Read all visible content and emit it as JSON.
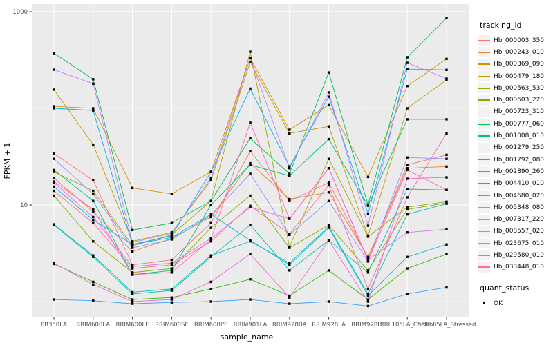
{
  "axes": {
    "x_title": "sample_name",
    "y_title": "FPKM + 1"
  },
  "legend": {
    "tracking_title": "tracking_id",
    "quant_title": "quant_status",
    "quant_label": "OK"
  },
  "chart_data": {
    "type": "line",
    "title": "",
    "xlabel": "sample_name",
    "ylabel": "FPKM + 1",
    "y_scale": "log10",
    "y_axis_breaks": [
      10,
      1000
    ],
    "y_tick_labels": [
      "10",
      "1000"
    ],
    "y_minor_gridlines": [
      1,
      100
    ],
    "ylim": [
      0.7,
      1200
    ],
    "grid": "major+minor, white on grey panel",
    "legend_position": "right",
    "legend_title": "tracking_id",
    "point_legend": {
      "title": "quant_status",
      "label": "OK",
      "color": "#000000"
    },
    "panel_color": "#EBEBEB",
    "categories": [
      "PB350LA",
      "RRIM600LA",
      "RRIM600LE",
      "RRIM600SE",
      "RRIM600PE",
      "RRIM901LA",
      "RRIM928BA",
      "RRIM928LA",
      "RRIM928LE",
      "RRII105LA_Control",
      "RRII105LA_Stressed"
    ],
    "series": [
      {
        "name": "Hb_000003_350",
        "color": "#F8766D",
        "values": [
          34,
          18,
          2.4,
          2.7,
          6.5,
          36,
          11,
          17,
          2.8,
          26,
          33
        ]
      },
      {
        "name": "Hb_000243_010",
        "color": "#EA8331",
        "values": [
          19,
          8.5,
          3.3,
          4.5,
          7.5,
          27,
          11.5,
          13.5,
          2.9,
          24,
          25
        ]
      },
      {
        "name": "Hb_000369_090",
        "color": "#D89000",
        "values": [
          105,
          100,
          15,
          13,
          22,
          330,
          60,
          108,
          19.5,
          170,
          325
        ]
      },
      {
        "name": "Hb_000479_180",
        "color": "#C09B00",
        "values": [
          156,
          42,
          4.2,
          5.2,
          18,
          300,
          55,
          65,
          4.8,
          100,
          197
        ]
      },
      {
        "name": "Hb_000563_530",
        "color": "#A3A500",
        "values": [
          22,
          14,
          3.8,
          4.9,
          11,
          385,
          3.7,
          30,
          4.7,
          9.5,
          10.8
        ]
      },
      {
        "name": "Hb_000603_220",
        "color": "#7CAE00",
        "values": [
          12.5,
          4.2,
          2.0,
          2.2,
          5.8,
          12.5,
          3.6,
          6.2,
          2.1,
          9.0,
          10.5
        ]
      },
      {
        "name": "Hb_000723_310",
        "color": "#39B600",
        "values": [
          2.45,
          1.6,
          1.05,
          1.1,
          1.35,
          1.7,
          1.15,
          2.1,
          1.05,
          2.2,
          3.1
        ]
      },
      {
        "name": "Hb_000777_060",
        "color": "#00BB4E",
        "values": [
          372,
          200,
          5.5,
          6.5,
          11,
          49,
          21,
          235,
          10,
          338,
          860
        ]
      },
      {
        "name": "Hb_001008_010",
        "color": "#00BF7D",
        "values": [
          23,
          11,
          1.9,
          2.1,
          10,
          26,
          20,
          48,
          9.8,
          77,
          77
        ]
      },
      {
        "name": "Hb_001279_250",
        "color": "#00C1A3",
        "values": [
          6.2,
          2.9,
          1.2,
          1.3,
          2.9,
          6.2,
          2.1,
          4.3,
          2.0,
          14.6,
          14.3
        ]
      },
      {
        "name": "Hb_001792_080",
        "color": "#00BFC4",
        "values": [
          6.3,
          3.0,
          1.25,
          1.35,
          3.0,
          4.2,
          2.5,
          6.0,
          1.2,
          8.0,
          10.3
        ]
      },
      {
        "name": "Hb_002890_260",
        "color": "#00BAE0",
        "values": [
          15.5,
          7.0,
          3.9,
          4.6,
          8.0,
          4.3,
          2.4,
          5.8,
          1.15,
          2.9,
          3.9
        ]
      },
      {
        "name": "Hb_004410_010",
        "color": "#00B0F6",
        "values": [
          100,
          95,
          3.9,
          4.8,
          22,
          160,
          25,
          132,
          8.1,
          255,
          250
        ]
      },
      {
        "name": "Hb_004680_020",
        "color": "#35A2FF",
        "values": [
          1.05,
          1.02,
          0.95,
          0.98,
          1.0,
          1.05,
          0.95,
          1.0,
          0.9,
          1.2,
          1.4
        ]
      },
      {
        "name": "Hb_005348_080",
        "color": "#9590FF",
        "values": [
          30,
          13,
          3.6,
          4.4,
          7.8,
          21,
          4.9,
          11,
          2.6,
          31,
          30
        ]
      },
      {
        "name": "Hb_007317_220",
        "color": "#C77CFF",
        "values": [
          251,
          180,
          4.1,
          5.1,
          19,
          330,
          24,
          146,
          6.1,
          296,
          203
        ]
      },
      {
        "name": "Hb_008557_020",
        "color": "#E76BF3",
        "values": [
          17,
          7.5,
          2.3,
          2.5,
          4.5,
          9.5,
          7.2,
          24,
          2.7,
          5.2,
          5.6
        ]
      },
      {
        "name": "Hb_023675_010",
        "color": "#FA62DB",
        "values": [
          2.5,
          1.5,
          1.0,
          1.05,
          1.6,
          3.1,
          1.1,
          4.3,
          1.0,
          18.7,
          19.3
        ]
      },
      {
        "name": "Hb_029580_010",
        "color": "#FF62BC",
        "values": [
          17.5,
          9.0,
          1.9,
          2.0,
          4.4,
          71,
          7.2,
          24,
          2.65,
          23,
          14.3
        ]
      },
      {
        "name": "Hb_033448_010",
        "color": "#FF6A98",
        "values": [
          14,
          6.5,
          2.2,
          2.4,
          4.2,
          9.8,
          5.0,
          16,
          1.35,
          12,
          55
        ]
      }
    ]
  }
}
